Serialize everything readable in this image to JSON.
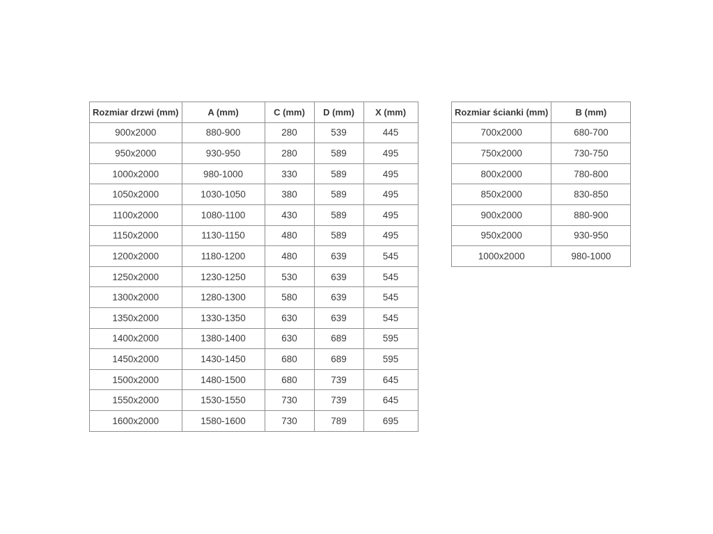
{
  "colors": {
    "background": "#ffffff",
    "table_border": "#8e8e8e",
    "text": "#3b3b3b"
  },
  "doors_table": {
    "title": "door sizes table",
    "headers": [
      "Rozmiar drzwi (mm)",
      "A (mm)",
      "C (mm)",
      "D (mm)",
      "X (mm)"
    ],
    "rows": [
      [
        "900x2000",
        "880-900",
        "280",
        "539",
        "445"
      ],
      [
        "950x2000",
        "930-950",
        "280",
        "589",
        "495"
      ],
      [
        "1000x2000",
        "980-1000",
        "330",
        "589",
        "495"
      ],
      [
        "1050x2000",
        "1030-1050",
        "380",
        "589",
        "495"
      ],
      [
        "1100x2000",
        "1080-1100",
        "430",
        "589",
        "495"
      ],
      [
        "1150x2000",
        "1130-1150",
        "480",
        "589",
        "495"
      ],
      [
        "1200x2000",
        "1180-1200",
        "480",
        "639",
        "545"
      ],
      [
        "1250x2000",
        "1230-1250",
        "530",
        "639",
        "545"
      ],
      [
        "1300x2000",
        "1280-1300",
        "580",
        "639",
        "545"
      ],
      [
        "1350x2000",
        "1330-1350",
        "630",
        "639",
        "545"
      ],
      [
        "1400x2000",
        "1380-1400",
        "630",
        "689",
        "595"
      ],
      [
        "1450x2000",
        "1430-1450",
        "680",
        "689",
        "595"
      ],
      [
        "1500x2000",
        "1480-1500",
        "680",
        "739",
        "645"
      ],
      [
        "1550x2000",
        "1530-1550",
        "730",
        "739",
        "645"
      ],
      [
        "1600x2000",
        "1580-1600",
        "730",
        "789",
        "695"
      ]
    ]
  },
  "wall_table": {
    "title": "wall panel sizes table",
    "headers": [
      "Rozmiar ścianki (mm)",
      "B (mm)"
    ],
    "rows": [
      [
        "700x2000",
        "680-700"
      ],
      [
        "750x2000",
        "730-750"
      ],
      [
        "800x2000",
        "780-800"
      ],
      [
        "850x2000",
        "830-850"
      ],
      [
        "900x2000",
        "880-900"
      ],
      [
        "950x2000",
        "930-950"
      ],
      [
        "1000x2000",
        "980-1000"
      ]
    ]
  }
}
